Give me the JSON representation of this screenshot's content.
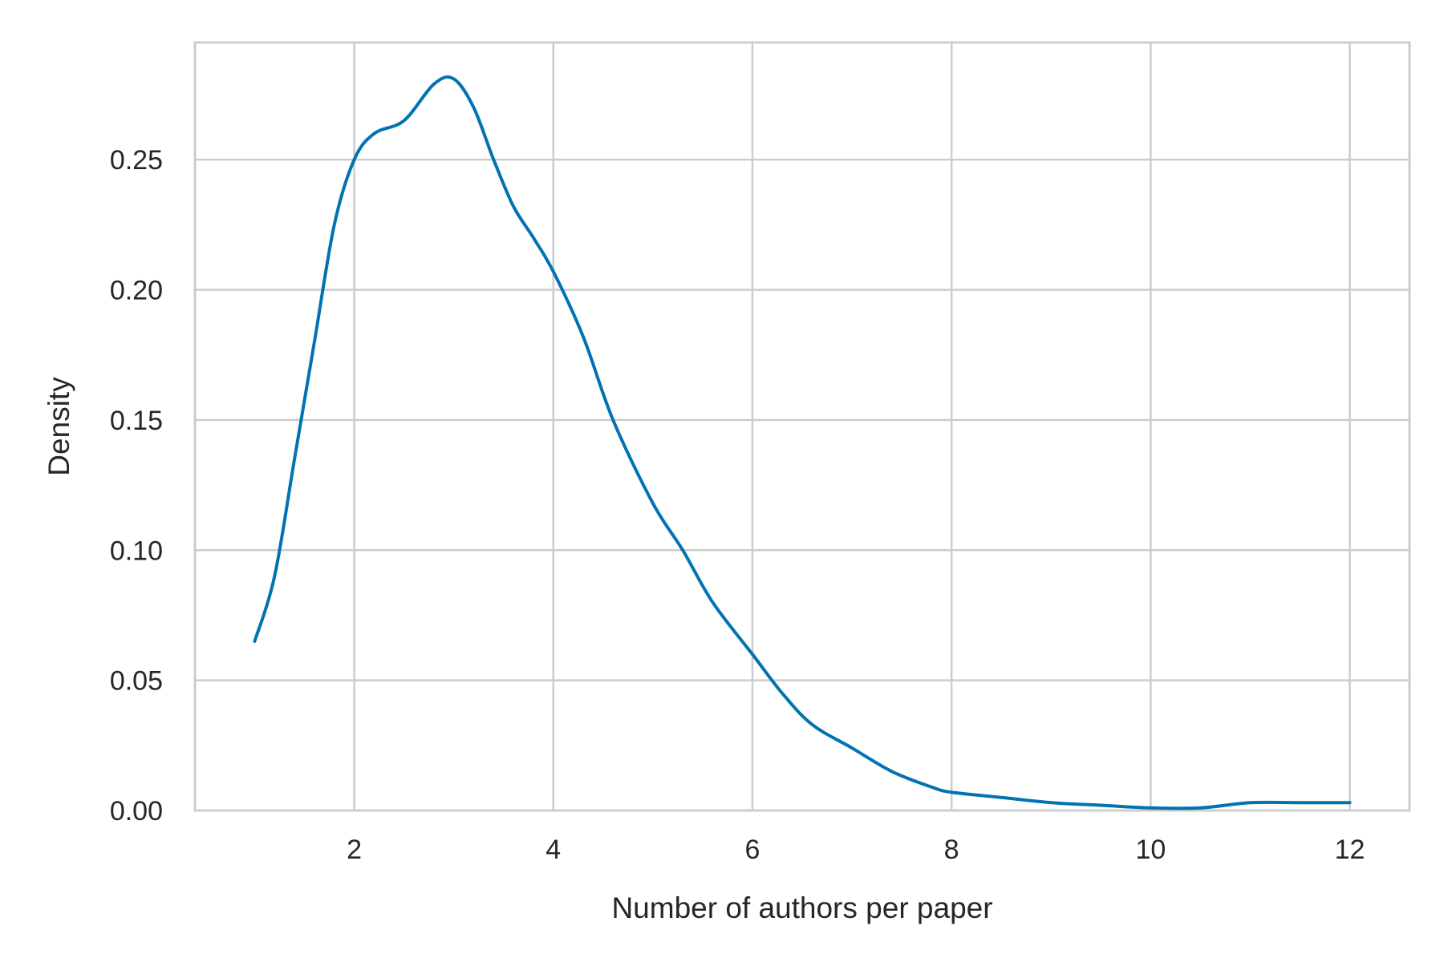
{
  "chart_data": {
    "type": "line",
    "title": "",
    "xlabel": "Number of authors per paper",
    "ylabel": "Density",
    "xlim": [
      0.4,
      12.6
    ],
    "ylim": [
      0.0,
      0.295
    ],
    "x_ticks": [
      2,
      4,
      6,
      8,
      10,
      12
    ],
    "y_ticks": [
      0.0,
      0.05,
      0.1,
      0.15,
      0.2,
      0.25
    ],
    "x_tick_labels": [
      "2",
      "4",
      "6",
      "8",
      "10",
      "12"
    ],
    "y_tick_labels": [
      "0.00",
      "0.05",
      "0.10",
      "0.15",
      "0.20",
      "0.25"
    ],
    "grid": true,
    "colors": {
      "line": "#0173b2",
      "grid": "#cccccc",
      "text": "#262626"
    },
    "series": [
      {
        "x": [
          1.0,
          1.2,
          1.4,
          1.6,
          1.8,
          2.0,
          2.2,
          2.5,
          2.8,
          3.0,
          3.2,
          3.4,
          3.6,
          3.8,
          4.0,
          4.3,
          4.6,
          5.0,
          5.3,
          5.6,
          6.0,
          6.3,
          6.6,
          7.0,
          7.4,
          7.8,
          8.0,
          8.5,
          9.0,
          9.5,
          10.0,
          10.5,
          11.0,
          11.5,
          12.0
        ],
        "y": [
          0.065,
          0.09,
          0.135,
          0.18,
          0.225,
          0.25,
          0.26,
          0.265,
          0.279,
          0.281,
          0.27,
          0.25,
          0.232,
          0.22,
          0.207,
          0.182,
          0.15,
          0.118,
          0.1,
          0.08,
          0.06,
          0.045,
          0.033,
          0.024,
          0.015,
          0.009,
          0.007,
          0.005,
          0.003,
          0.002,
          0.001,
          0.001,
          0.003,
          0.003,
          0.003
        ]
      }
    ]
  }
}
